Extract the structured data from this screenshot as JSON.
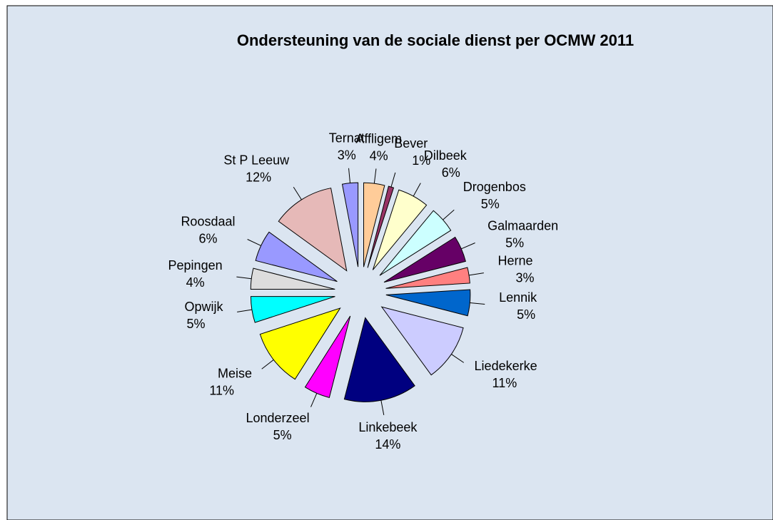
{
  "chart_data": {
    "type": "pie",
    "title": "Ondersteuning van de sociale dienst per OCMW 2011",
    "categories": [
      "Affligem",
      "Bever",
      "Dilbeek",
      "Drogenbos",
      "Galmaarden",
      "Herne",
      "Lennik",
      "Liedekerke",
      "Linkebeek",
      "Londerzeel",
      "Meise",
      "Opwijk",
      "Pepingen",
      "Roosdaal",
      "St P Leeuw",
      "Ternat"
    ],
    "values": [
      4,
      1,
      6,
      5,
      5,
      3,
      5,
      11,
      14,
      5,
      11,
      5,
      4,
      6,
      12,
      3
    ],
    "value_labels": [
      "4%",
      "1%",
      "6%",
      "5%",
      "5%",
      "3%",
      "5%",
      "11%",
      "14%",
      "5%",
      "11%",
      "5%",
      "4%",
      "6%",
      "12%",
      "3%"
    ],
    "colors": [
      "#ffcc99",
      "#993366",
      "#ffffcc",
      "#ccffff",
      "#660066",
      "#ff8080",
      "#0066cc",
      "#ccccff",
      "#000080",
      "#ff00ff",
      "#ffff00",
      "#00ffff",
      "#dddddd",
      "#9999ff",
      "#e6b9b8",
      "#9999ff"
    ]
  }
}
